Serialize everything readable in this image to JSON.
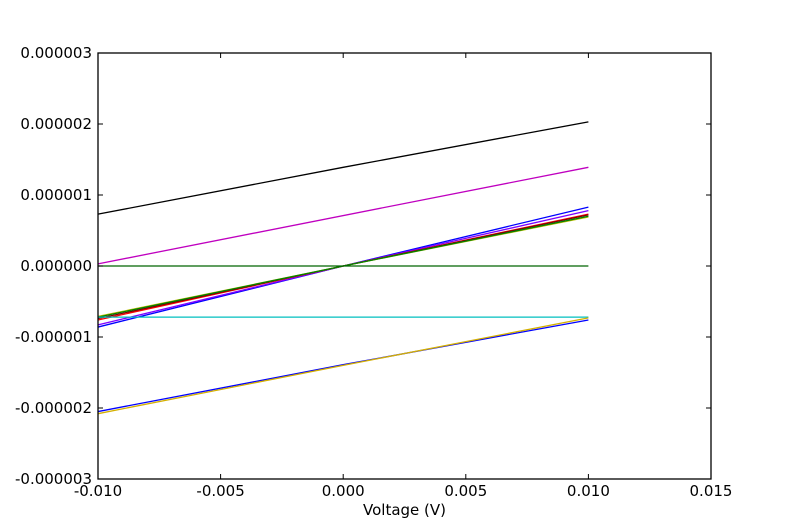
{
  "chart_data": {
    "type": "line",
    "title": "",
    "xlabel": "Voltage (V)",
    "ylabel": "",
    "xlim": [
      -0.01,
      0.015
    ],
    "ylim": [
      -3e-06,
      3e-06
    ],
    "xticks": [
      -0.01,
      -0.005,
      0.0,
      0.005,
      0.01,
      0.015
    ],
    "xtick_labels": [
      "-0.010",
      "-0.005",
      "0.000",
      "0.005",
      "0.010",
      "0.015"
    ],
    "yticks": [
      -3e-06,
      -2e-06,
      -1e-06,
      0.0,
      1e-06,
      2e-06,
      3e-06
    ],
    "ytick_labels": [
      "-0.000003",
      "-0.000002",
      "-0.000001",
      "0.000000",
      "0.000001",
      "0.000002",
      "0.000003"
    ],
    "grid": false,
    "legend": "none",
    "series": [
      {
        "color": "#000000",
        "x": [
          -0.01,
          0.0,
          0.01
        ],
        "y": [
          7.3e-07,
          1.39e-06,
          2.03e-06
        ]
      },
      {
        "color": "#bf00bf",
        "x": [
          -0.01,
          0.01
        ],
        "y": [
          3e-08,
          1.39e-06
        ]
      },
      {
        "color": "#0000ff",
        "x": [
          -0.01,
          0.0,
          0.01
        ],
        "y": [
          -8.6e-07,
          0.0,
          8.3e-07
        ]
      },
      {
        "color": "#7f00ff",
        "x": [
          -0.01,
          0.0,
          0.01
        ],
        "y": [
          -8.3e-07,
          0.0,
          7.8e-07
        ]
      },
      {
        "color": "#ff0000",
        "x": [
          -0.01,
          0.0,
          0.01
        ],
        "y": [
          -7.6e-07,
          0.0,
          7.3e-07
        ]
      },
      {
        "color": "#7f0000",
        "x": [
          -0.01,
          0.0,
          0.01
        ],
        "y": [
          -7.4e-07,
          0.0,
          7.2e-07
        ]
      },
      {
        "color": "#bfbf00",
        "x": [
          -0.01,
          0.0,
          0.01
        ],
        "y": [
          -7.1e-07,
          0.0,
          6.9e-07
        ]
      },
      {
        "color": "#008000",
        "x": [
          -0.01,
          0.0,
          0.01
        ],
        "y": [
          -7.2e-07,
          0.0,
          7e-07
        ]
      },
      {
        "color": "#006400",
        "x": [
          -0.01,
          0.01
        ],
        "y": [
          0.0,
          0.0
        ]
      },
      {
        "color": "#00bfbf",
        "x": [
          -0.01,
          0.01
        ],
        "y": [
          -7.2e-07,
          -7.2e-07
        ]
      },
      {
        "color": "#0000ff",
        "x": [
          -0.01,
          0.0,
          0.01
        ],
        "y": [
          -2.05e-06,
          -1.39e-06,
          -7.6e-07
        ]
      },
      {
        "color": "#d4b000",
        "x": [
          -0.01,
          0.0,
          0.01
        ],
        "y": [
          -2.08e-06,
          -1.4e-06,
          -7.3e-07
        ]
      }
    ]
  }
}
